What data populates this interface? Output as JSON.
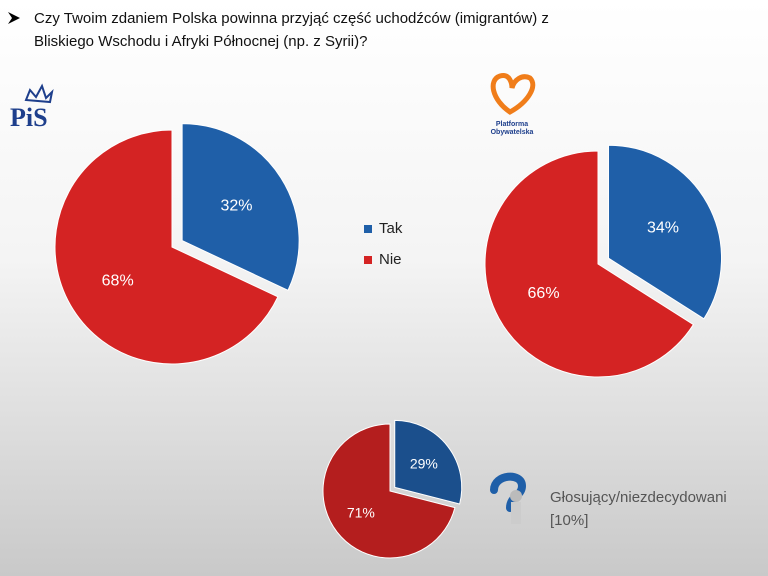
{
  "header": {
    "title": [
      "Czy Twoim zdaniem Polska powinna przyjąć część uchodźców (imigrantów) z",
      "Bliskiego Wschodu i Afryki Północnej (np. z Syrii)?"
    ]
  },
  "chart_data": [
    {
      "type": "pie",
      "logo": [
        "PiS"
      ],
      "categories": [
        "Tak",
        "Nie"
      ],
      "values": [
        32,
        68
      ],
      "value_labels": [
        "32%",
        "68%"
      ],
      "colors": [
        "#1f5fa8",
        "#d42323"
      ],
      "legend": true
    },
    {
      "type": "pie",
      "logo": [
        "Platforma",
        "Obywatelska"
      ],
      "categories": [
        "Tak",
        "Nie"
      ],
      "values": [
        34,
        66
      ],
      "value_labels": [
        "34%",
        "66%"
      ],
      "colors": [
        "#1f5fa8",
        "#d42323"
      ]
    },
    {
      "type": "pie",
      "annotation": [
        "Głosujący/niezdecydowani",
        "[10%]"
      ],
      "categories": [
        "Tak",
        "Nie"
      ],
      "values": [
        29,
        71
      ],
      "value_labels": [
        "29%",
        "71%"
      ],
      "colors": [
        "#1b4f8c",
        "#b41e1e"
      ]
    }
  ]
}
